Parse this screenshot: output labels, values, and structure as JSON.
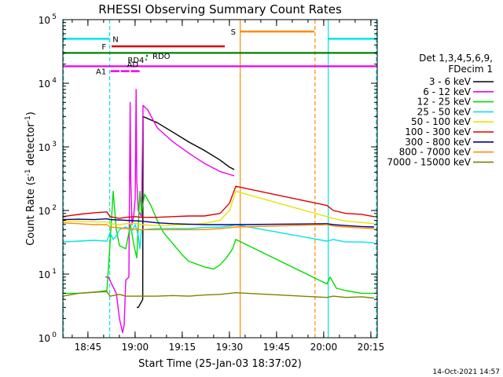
{
  "chart_data": {
    "type": "line",
    "title": "RHESSI Observing Summary Count Rates",
    "xlabel": "Start Time (25-Jan-03 18:37:02)",
    "ylabel_main": "Count Rate (s",
    "ylabel_sup1": "-1",
    "ylabel_mid": " detector",
    "ylabel_sup2": "-1",
    "ylabel_end": ")",
    "x_range_minutes": [
      0,
      100
    ],
    "ylim": [
      1,
      100000
    ],
    "yscale": "log",
    "x_ticks": [
      {
        "label": "18:45",
        "x": 7.97
      },
      {
        "label": "19:00",
        "x": 22.97
      },
      {
        "label": "19:15",
        "x": 37.97
      },
      {
        "label": "19:30",
        "x": 52.97
      },
      {
        "label": "19:45",
        "x": 67.97
      },
      {
        "label": "20:00",
        "x": 82.97
      },
      {
        "label": "20:15",
        "x": 97.97
      }
    ],
    "y_ticks": [
      {
        "label": "10",
        "exp": "0",
        "value": 1
      },
      {
        "label": "10",
        "exp": "1",
        "value": 10
      },
      {
        "label": "10",
        "exp": "2",
        "value": 100
      },
      {
        "label": "10",
        "exp": "3",
        "value": 1000
      },
      {
        "label": "10",
        "exp": "4",
        "value": 10000
      },
      {
        "label": "10",
        "exp": "5",
        "value": 100000
      }
    ],
    "legend_header": [
      "Det 1,3,4,5,6,9,",
      "FDecim 1"
    ],
    "series": [
      {
        "name": "3 - 6 keV",
        "color": "#000000",
        "points": [
          [
            23.5,
            3.0
          ],
          [
            24,
            3.0
          ],
          [
            25.4,
            4.0
          ],
          [
            25.5,
            3000
          ],
          [
            30,
            2400
          ],
          [
            35,
            1700
          ],
          [
            40,
            1200
          ],
          [
            45,
            880
          ],
          [
            50,
            620
          ],
          [
            53,
            480
          ],
          [
            54.5,
            440
          ]
        ]
      },
      {
        "name": "6 - 12 keV",
        "color": "#ee00ee",
        "points": [
          [
            13.5,
            9
          ],
          [
            14.5,
            9
          ],
          [
            15.5,
            7
          ],
          [
            17,
            5
          ],
          [
            18,
            2
          ],
          [
            19,
            1.2
          ],
          [
            19.5,
            1.6
          ],
          [
            20,
            8
          ],
          [
            21,
            9
          ],
          [
            21.4,
            5000
          ],
          [
            21.6,
            300
          ],
          [
            22,
            60
          ],
          [
            22.5,
            80
          ],
          [
            23,
            150
          ],
          [
            23.3,
            8000
          ],
          [
            23.5,
            300
          ],
          [
            24,
            100
          ],
          [
            25,
            80
          ],
          [
            25.5,
            4500
          ],
          [
            27,
            3800
          ],
          [
            30,
            2000
          ],
          [
            35,
            1200
          ],
          [
            40,
            800
          ],
          [
            45,
            550
          ],
          [
            50,
            410
          ],
          [
            53,
            370
          ],
          [
            54.5,
            350
          ]
        ]
      },
      {
        "name": "12 - 25 keV",
        "color": "#00dd00",
        "points": [
          [
            0,
            5
          ],
          [
            5,
            5
          ],
          [
            10,
            5.2
          ],
          [
            14,
            5.5
          ],
          [
            15,
            30
          ],
          [
            16,
            200
          ],
          [
            17,
            50
          ],
          [
            18,
            28
          ],
          [
            20,
            25
          ],
          [
            21.5,
            60
          ],
          [
            22.5,
            30
          ],
          [
            23.5,
            18
          ],
          [
            24.5,
            200
          ],
          [
            25,
            90
          ],
          [
            26,
            180
          ],
          [
            28,
            120
          ],
          [
            30,
            70
          ],
          [
            32,
            45
          ],
          [
            35,
            30
          ],
          [
            38,
            20
          ],
          [
            40,
            16
          ],
          [
            45,
            13
          ],
          [
            48,
            12
          ],
          [
            50,
            14
          ],
          [
            52,
            18
          ],
          [
            54,
            25
          ],
          [
            55,
            35
          ],
          [
            84,
            7
          ],
          [
            85,
            9
          ],
          [
            87,
            6
          ],
          [
            90,
            5.5
          ],
          [
            95,
            5
          ],
          [
            99,
            5
          ]
        ]
      },
      {
        "name": "25 - 50 keV",
        "color": "#00e5e5",
        "points": [
          [
            0,
            32
          ],
          [
            5,
            33
          ],
          [
            10,
            34
          ],
          [
            14,
            33
          ],
          [
            15,
            45
          ],
          [
            16,
            35
          ],
          [
            17,
            40
          ],
          [
            18,
            50
          ],
          [
            20,
            55
          ],
          [
            22,
            48
          ],
          [
            23,
            60
          ],
          [
            24,
            40
          ],
          [
            24.5,
            25
          ],
          [
            25,
            50
          ],
          [
            30,
            52
          ],
          [
            35,
            52
          ],
          [
            40,
            52
          ],
          [
            45,
            54
          ],
          [
            50,
            55
          ],
          [
            53,
            57
          ],
          [
            55,
            60
          ],
          [
            84,
            33
          ],
          [
            86,
            35
          ],
          [
            90,
            32
          ],
          [
            95,
            32
          ],
          [
            99,
            31
          ]
        ]
      },
      {
        "name": "50 - 100 keV",
        "color": "#e5e500",
        "points": [
          [
            0,
            68
          ],
          [
            5,
            68
          ],
          [
            10,
            66
          ],
          [
            14,
            66
          ],
          [
            15,
            62
          ],
          [
            18,
            60
          ],
          [
            20,
            62
          ],
          [
            23,
            63
          ],
          [
            25,
            60
          ],
          [
            30,
            58
          ],
          [
            35,
            59
          ],
          [
            40,
            60
          ],
          [
            45,
            63
          ],
          [
            50,
            70
          ],
          [
            53,
            100
          ],
          [
            55,
            200
          ],
          [
            84,
            80
          ],
          [
            86,
            75
          ],
          [
            90,
            68
          ],
          [
            95,
            65
          ],
          [
            99,
            62
          ]
        ]
      },
      {
        "name": "100 - 300 keV",
        "color": "#dd0000",
        "points": [
          [
            0,
            80
          ],
          [
            3,
            84
          ],
          [
            6,
            88
          ],
          [
            10,
            92
          ],
          [
            14,
            95
          ],
          [
            15,
            80
          ],
          [
            18,
            75
          ],
          [
            20,
            78
          ],
          [
            23,
            80
          ],
          [
            25,
            78
          ],
          [
            30,
            78
          ],
          [
            35,
            80
          ],
          [
            40,
            82
          ],
          [
            45,
            82
          ],
          [
            50,
            90
          ],
          [
            53,
            130
          ],
          [
            55,
            240
          ],
          [
            84,
            120
          ],
          [
            86,
            100
          ],
          [
            90,
            90
          ],
          [
            95,
            87
          ],
          [
            99,
            80
          ]
        ]
      },
      {
        "name": "300 - 800 keV",
        "color": "#00008b",
        "points": [
          [
            0,
            72
          ],
          [
            5,
            73
          ],
          [
            10,
            72
          ],
          [
            14,
            74
          ],
          [
            15,
            72
          ],
          [
            20,
            70
          ],
          [
            25,
            68
          ],
          [
            30,
            64
          ],
          [
            35,
            62
          ],
          [
            40,
            61
          ],
          [
            45,
            60
          ],
          [
            50,
            60
          ],
          [
            55,
            60
          ],
          [
            84,
            62
          ],
          [
            86,
            60
          ],
          [
            90,
            58
          ],
          [
            95,
            56
          ],
          [
            99,
            55
          ]
        ]
      },
      {
        "name": "800 - 7000 keV",
        "color": "#ff8c00",
        "points": [
          [
            0,
            64
          ],
          [
            5,
            62
          ],
          [
            10,
            60
          ],
          [
            14,
            60
          ],
          [
            15,
            55
          ],
          [
            20,
            52
          ],
          [
            25,
            50
          ],
          [
            30,
            50
          ],
          [
            35,
            50
          ],
          [
            40,
            50
          ],
          [
            45,
            50
          ],
          [
            50,
            52
          ],
          [
            55,
            55
          ],
          [
            84,
            60
          ],
          [
            86,
            57
          ],
          [
            90,
            55
          ],
          [
            95,
            53
          ],
          [
            99,
            52
          ]
        ]
      },
      {
        "name": "7000 - 15000 keV",
        "color": "#808000",
        "points": [
          [
            0,
            4.5
          ],
          [
            5,
            5
          ],
          [
            10,
            5.2
          ],
          [
            14,
            5.3
          ],
          [
            15,
            4.5
          ],
          [
            18,
            4.8
          ],
          [
            20,
            4.5
          ],
          [
            25,
            4.5
          ],
          [
            30,
            4.5
          ],
          [
            35,
            4.6
          ],
          [
            40,
            4.5
          ],
          [
            45,
            4.7
          ],
          [
            50,
            4.8
          ],
          [
            55,
            5.1
          ],
          [
            84,
            4.3
          ],
          [
            86,
            4.5
          ],
          [
            90,
            4.3
          ],
          [
            95,
            4.4
          ],
          [
            99,
            4.2
          ]
        ]
      }
    ],
    "flag_bars": [
      {
        "label": "N",
        "color": "#00e5e5",
        "segments": [
          [
            0,
            14.8
          ],
          [
            84.3,
            100
          ]
        ],
        "y": 50000
      },
      {
        "label": "S",
        "color": "#ff8c00",
        "segments": [
          [
            56.5,
            80
          ]
        ],
        "y": 65000
      },
      {
        "label": "F",
        "color": "#dd0000",
        "segments": [
          [
            15.5,
            51.5
          ]
        ],
        "y": 38000
      },
      {
        "label": "",
        "color": "#008000",
        "segments": [
          [
            0,
            100
          ]
        ],
        "y": 30000
      },
      {
        "label": "RD4",
        "color": "#008000",
        "segments": [
          [
            26.3,
            26.7
          ]
        ],
        "y": 23500
      },
      {
        "label": "RDO",
        "color": "#008000",
        "segments": [
          [
            26.5,
            27
          ]
        ],
        "y": 27000
      },
      {
        "label": "AD",
        "color": "#ee00ee",
        "segments": [],
        "y": 20000
      },
      {
        "label": "",
        "color": "#ee00ee",
        "segments": [
          [
            0,
            100
          ]
        ],
        "y": 18500
      },
      {
        "label": "A1",
        "color": "#ee00ee",
        "segments": [
          [
            15.2,
            18
          ],
          [
            18.4,
            21.2
          ],
          [
            21.6,
            24.4
          ]
        ],
        "y": 15500
      }
    ],
    "vertical_markers": [
      {
        "x": 0.2,
        "color": "#00e5e5",
        "style": "dashed"
      },
      {
        "x": 14.9,
        "color": "#00e5e5",
        "style": "dashed"
      },
      {
        "x": 56.4,
        "color": "#ff8c00",
        "style": "solid"
      },
      {
        "x": 80.2,
        "color": "#ff8c00",
        "style": "dashed"
      },
      {
        "x": 84.4,
        "color": "#00e5e5",
        "style": "solid"
      },
      {
        "x": 99.7,
        "color": "#00e5e5",
        "style": "dashed"
      }
    ],
    "footer": "14-Oct-2021 14:57"
  }
}
